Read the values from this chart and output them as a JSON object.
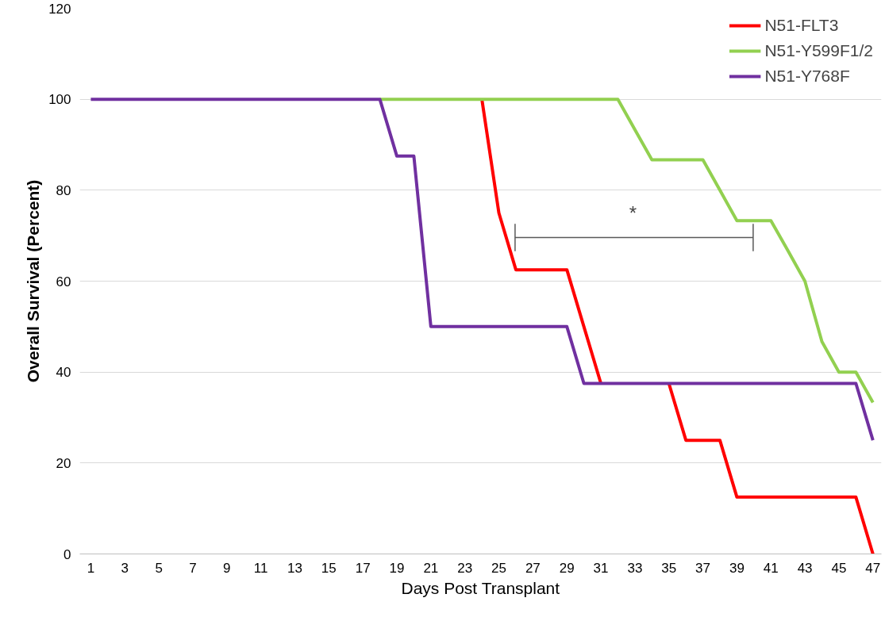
{
  "chart_data": {
    "type": "line",
    "xlabel": "Days Post Transplant",
    "ylabel": "Overall Survival (Percent)",
    "x": [
      1,
      2,
      3,
      4,
      5,
      6,
      7,
      8,
      9,
      10,
      11,
      12,
      13,
      14,
      15,
      16,
      17,
      18,
      19,
      20,
      21,
      22,
      23,
      24,
      25,
      26,
      27,
      28,
      29,
      30,
      31,
      32,
      33,
      34,
      35,
      36,
      37,
      38,
      39,
      40,
      41,
      42,
      43,
      44,
      45,
      46,
      47
    ],
    "series": [
      {
        "name": "N51-FLT3",
        "color": "#ff0000",
        "values": [
          null,
          null,
          null,
          null,
          null,
          null,
          null,
          null,
          null,
          null,
          null,
          null,
          null,
          null,
          null,
          null,
          null,
          null,
          null,
          null,
          null,
          null,
          null,
          100,
          75,
          62.5,
          62.5,
          62.5,
          62.5,
          50,
          37.5,
          null,
          null,
          null,
          37.5,
          25,
          25,
          25,
          12.5,
          12.5,
          12.5,
          12.5,
          12.5,
          12.5,
          12.5,
          12.5,
          0
        ]
      },
      {
        "name": "N51-Y599F1/2",
        "color": "#92d050",
        "values": [
          null,
          null,
          null,
          null,
          null,
          null,
          null,
          null,
          null,
          null,
          null,
          null,
          null,
          null,
          null,
          null,
          null,
          100,
          100,
          100,
          100,
          100,
          100,
          100,
          100,
          100,
          100,
          100,
          100,
          100,
          100,
          100,
          93.3,
          86.7,
          86.7,
          86.7,
          86.7,
          80,
          73.3,
          73.3,
          73.3,
          66.7,
          60,
          46.7,
          40,
          40,
          33.3
        ]
      },
      {
        "name": "N51-Y768F",
        "color": "#7030a0",
        "values": [
          100,
          100,
          100,
          100,
          100,
          100,
          100,
          100,
          100,
          100,
          100,
          100,
          100,
          100,
          100,
          100,
          100,
          100,
          87.5,
          87.5,
          50,
          50,
          50,
          50,
          50,
          50,
          50,
          50,
          50,
          37.5,
          37.5,
          37.5,
          37.5,
          37.5,
          37.5,
          37.5,
          37.5,
          37.5,
          37.5,
          37.5,
          37.5,
          37.5,
          37.5,
          37.5,
          37.5,
          37.5,
          25
        ]
      }
    ],
    "xlim": [
      0.35,
      47.5
    ],
    "xticks": [
      1,
      3,
      5,
      7,
      9,
      11,
      13,
      15,
      17,
      19,
      21,
      23,
      25,
      27,
      29,
      31,
      33,
      35,
      37,
      39,
      41,
      43,
      45,
      47
    ],
    "ylim": [
      0,
      120
    ],
    "yticks": [
      0,
      20,
      40,
      60,
      80,
      100,
      120
    ],
    "annotations": [
      "*"
    ],
    "grid": "y",
    "legend": "top right",
    "marker": "none",
    "line_style": "solid"
  }
}
